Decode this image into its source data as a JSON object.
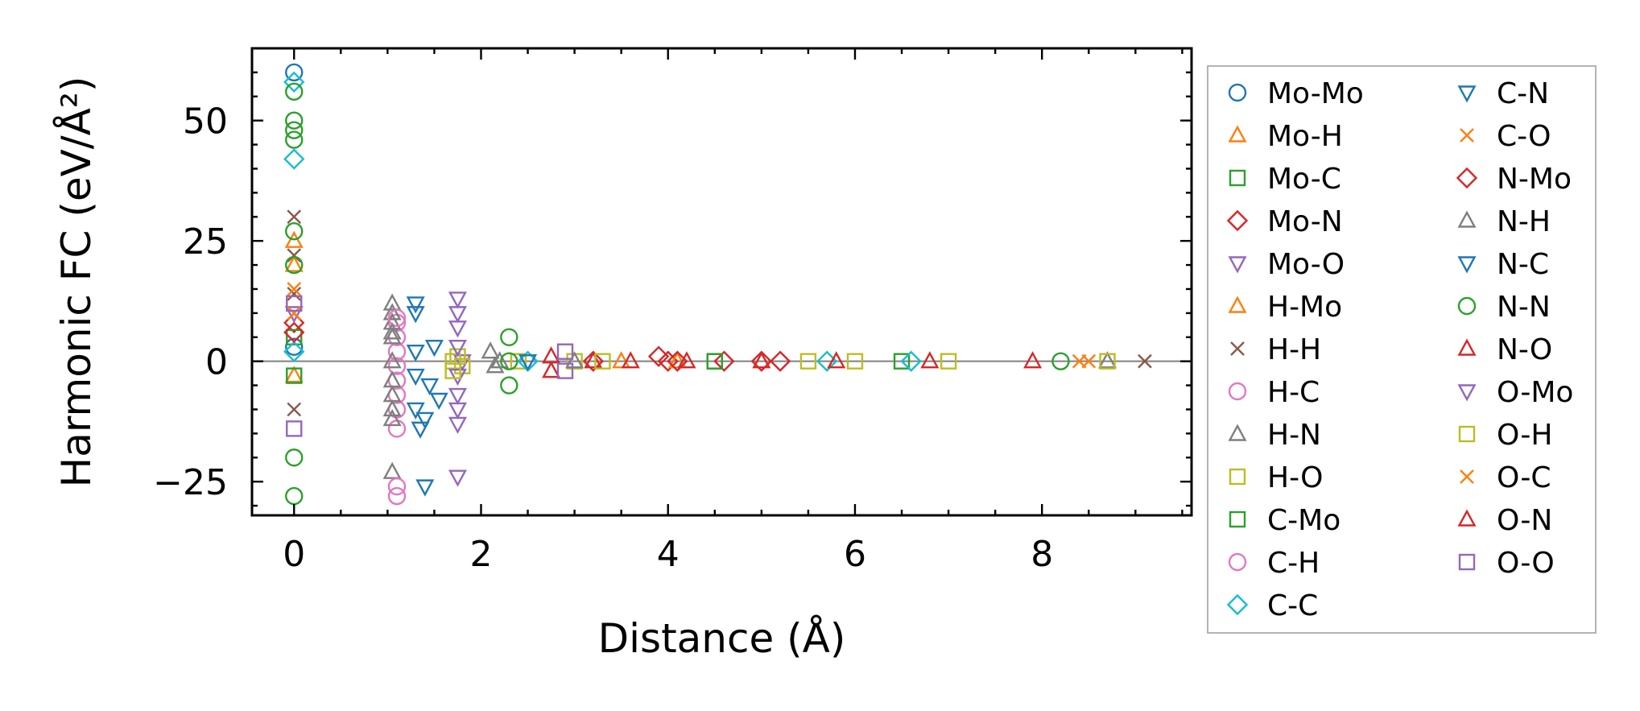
{
  "chart_data": {
    "type": "scatter",
    "xlabel": "Distance (Å)",
    "ylabel": "Harmonic FC (eV/Å²)",
    "xlim": [
      -0.45,
      9.6
    ],
    "ylim": [
      -32,
      65
    ],
    "xticks": [
      0,
      2,
      4,
      6,
      8
    ],
    "yticks": [
      -25,
      0,
      25,
      50
    ],
    "grid": false,
    "zero_line": true,
    "legend_position": "outside-right",
    "series": [
      {
        "name": "Mo-Mo",
        "marker": "circle",
        "color": "#1f77b4",
        "x": [
          0,
          0
        ],
        "y": [
          60,
          3
        ]
      },
      {
        "name": "Mo-H",
        "marker": "triangle-up",
        "color": "#ff7f0e",
        "x": [
          0,
          0
        ],
        "y": [
          25,
          -3
        ]
      },
      {
        "name": "Mo-C",
        "marker": "square",
        "color": "#2ca02c",
        "x": [
          0,
          4.5,
          6.5
        ],
        "y": [
          -3,
          0,
          0
        ]
      },
      {
        "name": "Mo-N",
        "marker": "diamond",
        "color": "#d62728",
        "x": [
          0,
          3.2,
          3.9,
          4.0,
          4.6,
          5.0
        ],
        "y": [
          8,
          0,
          1,
          0,
          0,
          0
        ]
      },
      {
        "name": "Mo-O",
        "marker": "triangle-down",
        "color": "#9467bd",
        "x": [
          0,
          1.8
        ],
        "y": [
          10,
          0
        ]
      },
      {
        "name": "H-Mo",
        "marker": "triangle-up",
        "color": "#ff7f0e",
        "x": [
          0,
          3.5,
          4.1
        ],
        "y": [
          20,
          0,
          0
        ]
      },
      {
        "name": "H-H",
        "marker": "x",
        "color": "#8c564b",
        "x": [
          0,
          0,
          0,
          0,
          9.1
        ],
        "y": [
          30,
          22,
          14,
          -10,
          0
        ]
      },
      {
        "name": "H-C",
        "marker": "circle",
        "color": "#e377c2",
        "x": [
          1.1,
          1.1,
          1.1,
          1.1,
          1.1,
          1.1,
          1.1,
          1.1,
          1.1
        ],
        "y": [
          8,
          5,
          2,
          -1,
          -4,
          -7,
          -10,
          -14,
          -28
        ]
      },
      {
        "name": "H-N",
        "marker": "triangle-up",
        "color": "#7f7f7f",
        "x": [
          1.05,
          1.05,
          1.05,
          1.05,
          1.05,
          1.05,
          1.05,
          1.05,
          1.05,
          1.05,
          2.1,
          2.2,
          8.7
        ],
        "y": [
          12,
          10,
          8,
          5,
          0,
          -4,
          -7,
          -10,
          -12,
          -23,
          2,
          0,
          0
        ]
      },
      {
        "name": "H-O",
        "marker": "square",
        "color": "#bcbd22",
        "x": [
          1.7,
          1.75,
          1.8,
          2.4,
          3.0,
          5.5,
          7.0,
          8.7
        ],
        "y": [
          0,
          1,
          -1,
          0,
          0,
          0,
          0,
          0
        ]
      },
      {
        "name": "C-Mo",
        "marker": "square",
        "color": "#2ca02c",
        "x": [
          0,
          4.5
        ],
        "y": [
          5,
          0
        ]
      },
      {
        "name": "C-H",
        "marker": "circle",
        "color": "#e377c2",
        "x": [
          1.1,
          1.1
        ],
        "y": [
          -26,
          9
        ]
      },
      {
        "name": "C-C",
        "marker": "diamond",
        "color": "#17becf",
        "x": [
          0,
          0,
          0,
          2.5,
          5.7,
          6.6
        ],
        "y": [
          58,
          42,
          2,
          0,
          0,
          0
        ]
      },
      {
        "name": "C-N",
        "marker": "triangle-down",
        "color": "#1f77b4",
        "x": [
          1.3,
          1.3,
          1.3,
          1.3,
          1.35,
          1.4,
          1.45,
          1.5,
          1.55
        ],
        "y": [
          12,
          10,
          2,
          -10,
          -14,
          -26,
          -5,
          3,
          -8
        ]
      },
      {
        "name": "C-O",
        "marker": "x",
        "color": "#ff7f0e",
        "x": [
          0,
          8.5
        ],
        "y": [
          15,
          0
        ]
      },
      {
        "name": "N-Mo",
        "marker": "diamond",
        "color": "#d62728",
        "x": [
          0,
          4.1,
          5.2
        ],
        "y": [
          6,
          0,
          0
        ]
      },
      {
        "name": "N-H",
        "marker": "triangle-up",
        "color": "#7f7f7f",
        "x": [
          1.05,
          2.15,
          3.0
        ],
        "y": [
          6,
          -1,
          0
        ]
      },
      {
        "name": "N-C",
        "marker": "triangle-down",
        "color": "#1f77b4",
        "x": [
          1.3,
          1.4,
          2.5
        ],
        "y": [
          -3,
          -12,
          0
        ]
      },
      {
        "name": "N-N",
        "marker": "circle",
        "color": "#2ca02c",
        "x": [
          0,
          0,
          0,
          0,
          0,
          0,
          0,
          0,
          2.3,
          2.3,
          2.3,
          8.2
        ],
        "y": [
          56,
          50,
          48,
          46,
          27,
          20,
          -20,
          -28,
          5,
          0,
          -5,
          0
        ]
      },
      {
        "name": "N-O",
        "marker": "triangle-up",
        "color": "#d62728",
        "x": [
          2.75,
          3.2,
          4.2,
          5.0,
          5.8,
          6.8,
          7.9
        ],
        "y": [
          -2,
          0,
          0,
          0,
          0,
          0,
          0
        ]
      },
      {
        "name": "O-Mo",
        "marker": "triangle-down",
        "color": "#9467bd",
        "x": [
          1.75,
          1.75,
          1.75,
          1.75,
          1.75,
          1.75,
          1.75,
          1.75,
          1.75
        ],
        "y": [
          13,
          10,
          7,
          3,
          -3,
          -7,
          -10,
          -13,
          -24
        ]
      },
      {
        "name": "O-H",
        "marker": "square",
        "color": "#bcbd22",
        "x": [
          1.7,
          3.3,
          6.0
        ],
        "y": [
          -2,
          0,
          0
        ]
      },
      {
        "name": "O-C",
        "marker": "x",
        "color": "#ff7f0e",
        "x": [
          0,
          8.4
        ],
        "y": [
          10,
          0
        ]
      },
      {
        "name": "O-N",
        "marker": "triangle-up",
        "color": "#d62728",
        "x": [
          2.75,
          3.6
        ],
        "y": [
          1,
          0
        ]
      },
      {
        "name": "O-O",
        "marker": "square",
        "color": "#9467bd",
        "x": [
          0,
          0,
          2.9,
          2.9
        ],
        "y": [
          12,
          -14,
          2,
          -2
        ]
      }
    ]
  }
}
